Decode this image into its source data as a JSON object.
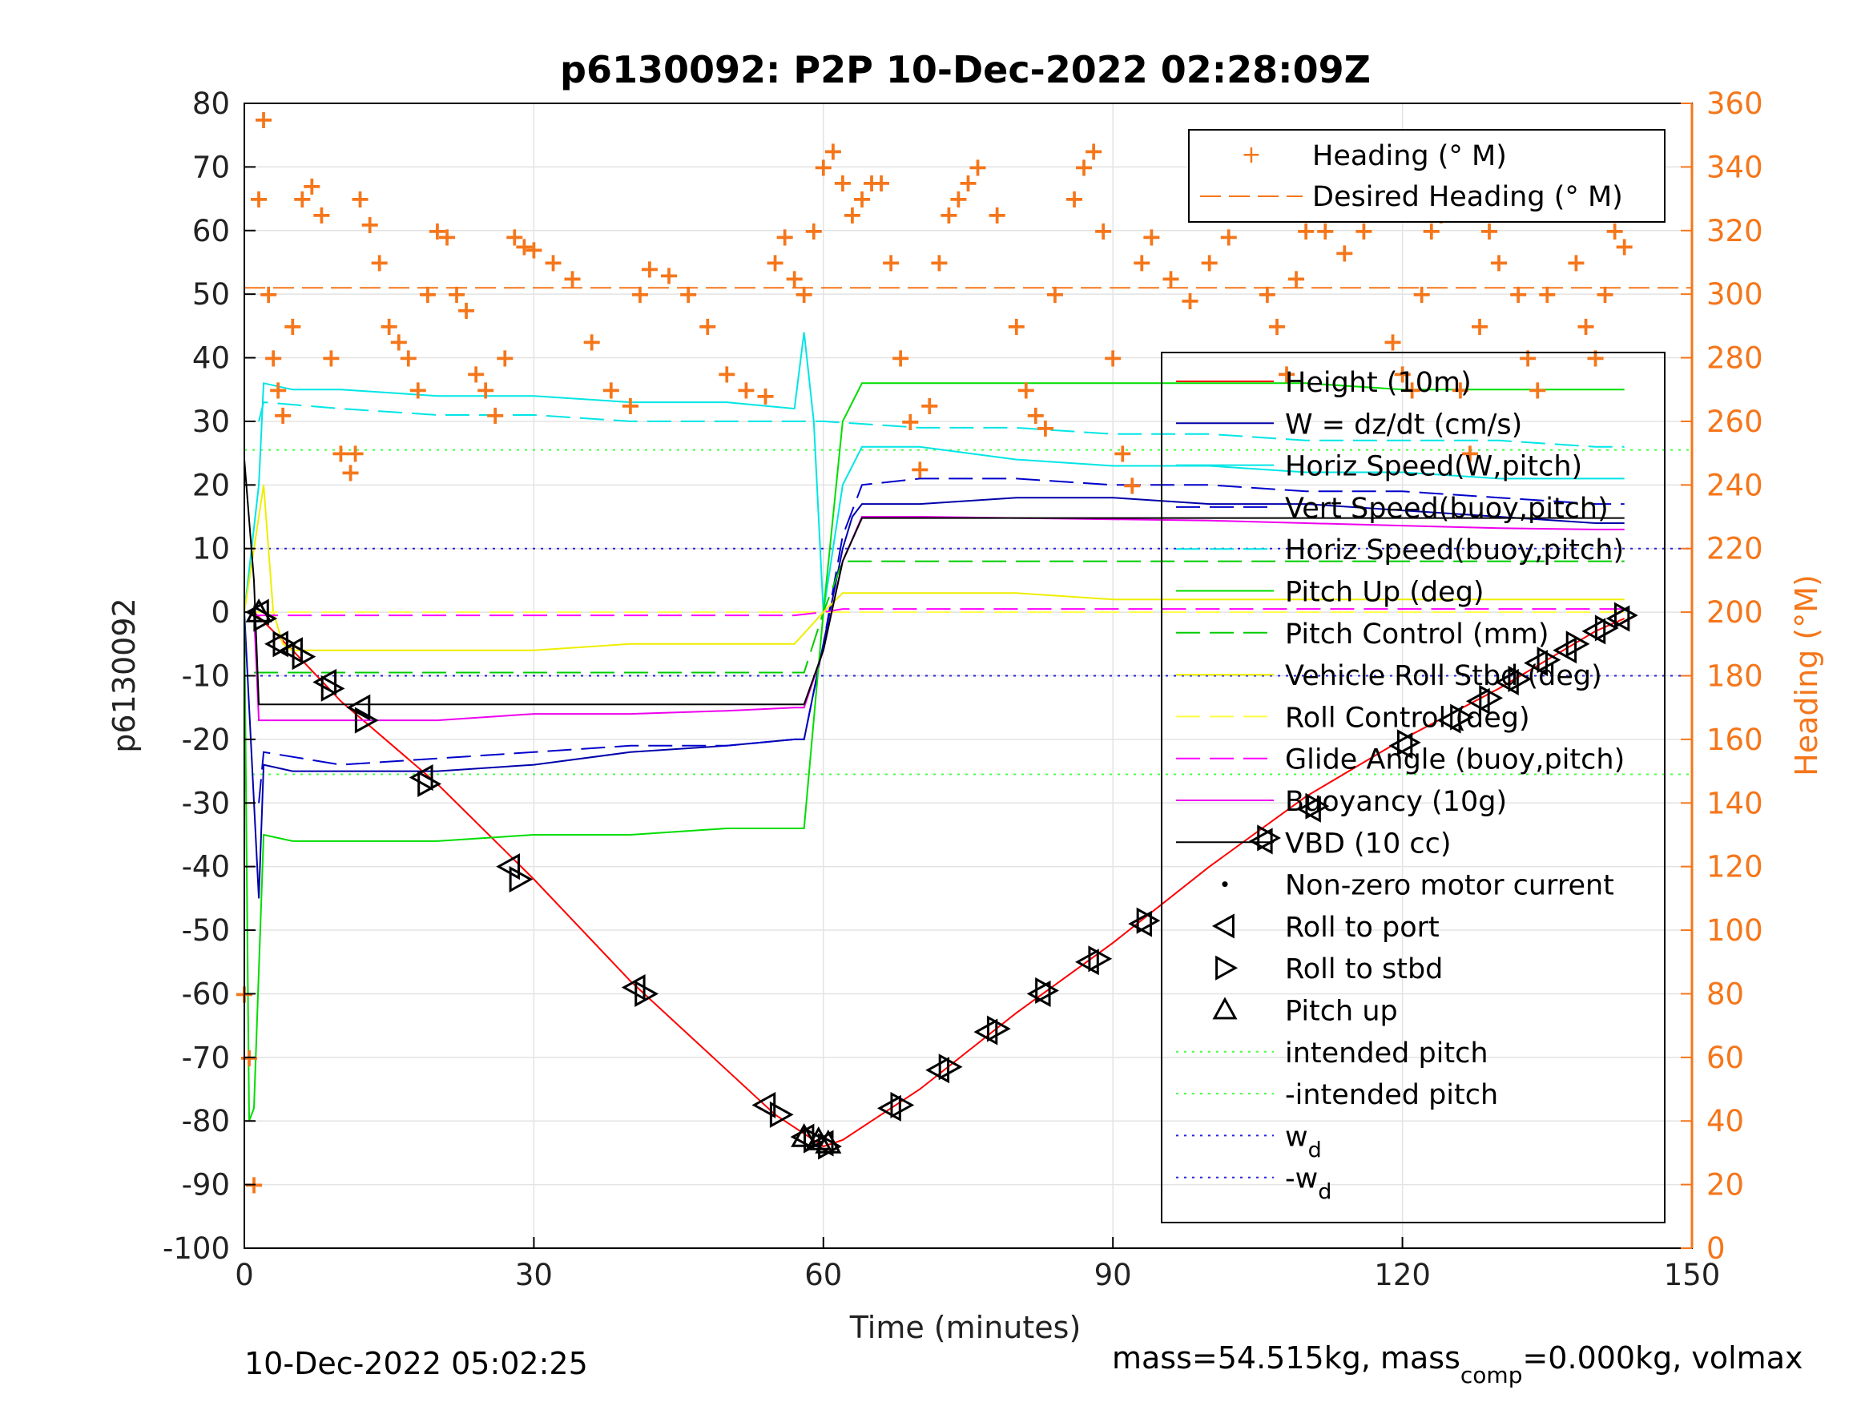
{
  "chart_data": {
    "type": "line",
    "title": "p6130092: P2P 10-Dec-2022 02:28:09Z",
    "xlabel": "Time (minutes)",
    "ylabel": "p6130092",
    "ylabel_right": "Heading (°M)",
    "xlim": [
      0,
      150
    ],
    "ylim": [
      -100,
      80
    ],
    "ylim_right": [
      0,
      360
    ],
    "xticks": [
      "0",
      "30",
      "60",
      "90",
      "120",
      "150"
    ],
    "yticks": [
      "80",
      "70",
      "60",
      "50",
      "40",
      "30",
      "20",
      "10",
      "0",
      "-10",
      "-20",
      "-30",
      "-40",
      "-50",
      "-60",
      "-70",
      "-80",
      "-90",
      "-100"
    ],
    "yticks_right": [
      "360",
      "340",
      "320",
      "300",
      "280",
      "260",
      "240",
      "220",
      "200",
      "180",
      "160",
      "140",
      "120",
      "100",
      "80",
      "60",
      "40",
      "20",
      "0"
    ],
    "grid": true,
    "footer_left": "10-Dec-2022 05:02:25",
    "footer_right": {
      "pre": "mass=54.515kg, mass",
      "sub": "comp",
      "post": "=0.000kg, volmax"
    },
    "heading_legend": {
      "position": "top-right",
      "items": [
        "Heading (° M)",
        "Desired Heading (° M)"
      ]
    },
    "legend": {
      "position": "right",
      "items": [
        {
          "label": "Height (10m)",
          "color": "#ff0000",
          "style": "solid"
        },
        {
          "label": "W = dz/dt (cm/s)",
          "color": "#0000aa",
          "style": "solid"
        },
        {
          "label": "Horiz Speed(W,pitch)",
          "color": "#00e5e5",
          "style": "solid"
        },
        {
          "label": "Vert Speed(buoy,pitch)",
          "color": "#0000cc",
          "style": "dashed"
        },
        {
          "label": "Horiz Speed(buoy,pitch)",
          "color": "#00e5e5",
          "style": "dashed"
        },
        {
          "label": "Pitch Up (deg)",
          "color": "#00dd00",
          "style": "solid"
        },
        {
          "label": "Pitch Control (mm)",
          "color": "#00cc00",
          "style": "dashed"
        },
        {
          "label": "Vehicle Roll Stbd (deg)",
          "color": "#eeee00",
          "style": "solid"
        },
        {
          "label": "Roll Control (deg)",
          "color": "#ffff44",
          "style": "dashed"
        },
        {
          "label": "Glide Angle (buoy,pitch)",
          "color": "#ff00ff",
          "style": "dashed"
        },
        {
          "label": "Buoyancy (10g)",
          "color": "#ee00ee",
          "style": "solid"
        },
        {
          "label": "VBD (10 cc)",
          "color": "#000000",
          "style": "solid"
        },
        {
          "label": "Non-zero motor current",
          "color": "#000000",
          "style": "dot"
        },
        {
          "label": "Roll to port",
          "color": "#000000",
          "style": "tri-left"
        },
        {
          "label": "Roll to stbd",
          "color": "#000000",
          "style": "tri-right"
        },
        {
          "label": "Pitch up",
          "color": "#000000",
          "style": "tri-up"
        },
        {
          "label": "intended pitch",
          "color": "#44ff44",
          "style": "dotted"
        },
        {
          "label": "-intended pitch",
          "color": "#44ff44",
          "style": "dotted"
        },
        {
          "label": "w",
          "sub": "d",
          "color": "#2222dd",
          "style": "dotted"
        },
        {
          "label": "-w",
          "sub": "d",
          "color": "#2222dd",
          "style": "dotted"
        }
      ]
    },
    "reference_lines": [
      {
        "name": "intended pitch",
        "y": 25.5,
        "color": "#44ff44"
      },
      {
        "name": "-intended pitch",
        "y": -25.5,
        "color": "#44ff44"
      },
      {
        "name": "w_d",
        "y": 10,
        "color": "#2222dd"
      },
      {
        "name": "-w_d",
        "y": -10,
        "color": "#2222dd"
      },
      {
        "name": "Desired Heading (° M)",
        "y_right": 302,
        "color": "#f5761a"
      }
    ],
    "series": [
      {
        "name": "Height (10m)",
        "color": "#ff0000",
        "x": [
          1,
          5,
          10,
          20,
          30,
          40,
          50,
          55,
          58,
          60,
          62,
          65,
          70,
          80,
          90,
          100,
          110,
          120,
          130,
          140,
          143
        ],
        "y": [
          0,
          -6,
          -14,
          -27,
          -42,
          -58,
          -72,
          -79,
          -82,
          -84,
          -83,
          -80,
          -75,
          -63,
          -52,
          -40,
          -29,
          -20,
          -12,
          -3,
          -1
        ]
      },
      {
        "name": "W = dz/dt (cm/s)",
        "color": "#0000aa",
        "x": [
          0,
          1.5,
          2,
          5,
          10,
          20,
          30,
          40,
          50,
          57,
          58,
          60,
          62,
          63,
          64,
          70,
          80,
          90,
          100,
          110,
          120,
          130,
          140,
          143
        ],
        "y": [
          0,
          -45,
          -24,
          -25,
          -25,
          -25,
          -24,
          -22,
          -21,
          -20,
          -20,
          -5,
          10,
          15,
          17,
          17,
          18,
          18,
          17,
          17,
          16,
          15,
          14,
          14
        ]
      },
      {
        "name": "Vert Speed(buoy,pitch)",
        "color": "#0000cc",
        "x": [
          1.5,
          2,
          10,
          20,
          30,
          40,
          50,
          57,
          58,
          60,
          62,
          64,
          70,
          80,
          90,
          100,
          110,
          120,
          130,
          140,
          143
        ],
        "y": [
          -30,
          -22,
          -24,
          -23,
          -22,
          -21,
          -21,
          -20,
          -20,
          -5,
          12,
          20,
          21,
          21,
          20,
          20,
          19,
          19,
          18,
          17,
          17
        ]
      },
      {
        "name": "Horiz Speed(W,pitch)",
        "color": "#00e5e5",
        "x": [
          0,
          1.5,
          2,
          5,
          10,
          20,
          30,
          40,
          50,
          57,
          58,
          59,
          60,
          62,
          64,
          70,
          80,
          90,
          100,
          110,
          120,
          130,
          140,
          143
        ],
        "y": [
          0,
          20,
          36,
          35,
          35,
          34,
          34,
          33,
          33,
          32,
          44,
          30,
          0,
          20,
          26,
          26,
          24,
          23,
          23,
          22,
          22,
          21,
          21,
          21
        ]
      },
      {
        "name": "Horiz Speed(buoy,pitch)",
        "color": "#00e5e5",
        "x": [
          1.5,
          2,
          10,
          20,
          30,
          40,
          50,
          57,
          60,
          70,
          80,
          90,
          100,
          110,
          120,
          130,
          140,
          143
        ],
        "y": [
          30,
          33,
          32,
          31,
          31,
          30,
          30,
          30,
          30,
          29,
          29,
          28,
          28,
          27,
          27,
          27,
          26,
          26
        ]
      },
      {
        "name": "Pitch Up (deg)",
        "color": "#00dd00",
        "x": [
          0,
          0.5,
          1,
          2,
          5,
          10,
          20,
          30,
          40,
          50,
          57,
          58,
          60,
          62,
          64,
          70,
          80,
          90,
          100,
          110,
          120,
          130,
          140,
          143
        ],
        "y": [
          0,
          -80,
          -78,
          -35,
          -36,
          -36,
          -36,
          -35,
          -35,
          -34,
          -34,
          -34,
          0,
          30,
          36,
          36,
          36,
          36,
          36,
          36,
          35,
          35,
          35,
          35
        ]
      },
      {
        "name": "Pitch Control (mm)",
        "color": "#00cc00",
        "x": [
          1,
          58,
          60,
          62,
          143
        ],
        "y": [
          -9.5,
          -9.5,
          0,
          8,
          8
        ]
      },
      {
        "name": "Vehicle Roll Stbd (deg)",
        "color": "#eeee00",
        "x": [
          0,
          2,
          3,
          4,
          5,
          10,
          20,
          30,
          40,
          50,
          57,
          60,
          62,
          70,
          80,
          90,
          100,
          110,
          120,
          130,
          140,
          143
        ],
        "y": [
          0,
          20,
          0,
          -5,
          -6,
          -6,
          -6,
          -6,
          -5,
          -5,
          -5,
          0,
          3,
          3,
          3,
          2,
          2,
          2,
          2,
          2,
          2,
          2
        ]
      },
      {
        "name": "Roll Control (deg)",
        "color": "#ffff44",
        "x": [
          1,
          58,
          60,
          143
        ],
        "y": [
          0,
          0,
          0,
          0
        ]
      },
      {
        "name": "Glide Angle (buoy,pitch)",
        "color": "#ff00ff",
        "x": [
          1,
          57,
          60,
          62,
          143
        ],
        "y": [
          -0.5,
          -0.5,
          0,
          0.5,
          0.5
        ]
      },
      {
        "name": "Buoyancy (10g)",
        "color": "#ee00ee",
        "x": [
          0,
          1,
          1.5,
          2,
          10,
          20,
          30,
          40,
          50,
          57,
          58,
          60,
          62,
          64,
          70,
          80,
          90,
          100,
          110,
          120,
          130,
          140,
          143
        ],
        "y": [
          0,
          0,
          -17,
          -17,
          -17,
          -17,
          -16,
          -16,
          -15.5,
          -15,
          -15,
          -6,
          8,
          15,
          15,
          14.8,
          14.6,
          14.4,
          14,
          13.6,
          13.2,
          13,
          13
        ]
      },
      {
        "name": "VBD (10 cc)",
        "color": "#000000",
        "x": [
          0,
          1,
          1.5,
          2,
          10,
          20,
          30,
          40,
          50,
          57,
          58,
          60,
          62,
          64,
          70,
          80,
          90,
          100,
          110,
          120,
          130,
          140,
          143
        ],
        "y": [
          24,
          5,
          -14.5,
          -14.5,
          -14.5,
          -14.5,
          -14.5,
          -14.5,
          -14.5,
          -14.5,
          -14.5,
          -6,
          8,
          14.8,
          14.8,
          14.8,
          14.8,
          14.8,
          14.8,
          14.8,
          14.8,
          14.8,
          14.8
        ]
      }
    ],
    "heading": {
      "name": "Heading (° M)",
      "axis": "right",
      "color": "#f5761a",
      "marker": "+",
      "x": [
        0,
        0.5,
        1,
        1.5,
        2,
        2.5,
        3,
        3.5,
        4,
        5,
        6,
        7,
        8,
        9,
        10,
        11,
        11.5,
        12,
        13,
        14,
        15,
        16,
        17,
        18,
        19,
        20,
        21,
        22,
        23,
        24,
        25,
        26,
        27,
        28,
        29,
        30,
        32,
        34,
        36,
        38,
        40,
        41,
        42,
        44,
        46,
        48,
        50,
        52,
        54,
        55,
        56,
        57,
        58,
        59,
        60,
        61,
        62,
        63,
        64,
        65,
        66,
        67,
        68,
        69,
        70,
        71,
        72,
        73,
        74,
        75,
        76,
        78,
        80,
        81,
        82,
        83,
        84,
        86,
        87,
        88,
        89,
        90,
        91,
        92,
        93,
        94,
        96,
        98,
        100,
        102,
        104,
        105,
        106,
        107,
        108,
        109,
        110,
        111,
        112,
        114,
        116,
        118,
        119,
        120,
        121,
        122,
        123,
        124,
        125,
        126,
        127,
        128,
        129,
        130,
        131,
        132,
        133,
        134,
        135,
        136,
        137,
        138,
        139,
        140,
        141,
        142,
        143
      ],
      "y": [
        80,
        60,
        20,
        330,
        355,
        300,
        280,
        270,
        262,
        290,
        330,
        334,
        325,
        280,
        250,
        244,
        250,
        330,
        322,
        310,
        290,
        285,
        280,
        270,
        300,
        320,
        318,
        300,
        295,
        275,
        270,
        262,
        280,
        318,
        315,
        314,
        310,
        305,
        285,
        270,
        265,
        300,
        308,
        306,
        300,
        290,
        275,
        270,
        268,
        310,
        318,
        305,
        300,
        320,
        340,
        345,
        335,
        325,
        330,
        335,
        335,
        310,
        280,
        260,
        245,
        265,
        310,
        325,
        330,
        335,
        340,
        325,
        290,
        270,
        262,
        258,
        300,
        330,
        340,
        345,
        320,
        280,
        250,
        240,
        310,
        318,
        305,
        298,
        310,
        318,
        340,
        335,
        300,
        290,
        275,
        305,
        320,
        330,
        320,
        313,
        320,
        330,
        285,
        275,
        270,
        300,
        320,
        325,
        330,
        270,
        250,
        290,
        320,
        310,
        330,
        300,
        280,
        270,
        300,
        330,
        340,
        310,
        290,
        280,
        300,
        320,
        315
      ]
    },
    "markers": {
      "roll_to_port": {
        "x": [
          1.5,
          3.5,
          5,
          8.5,
          12,
          18.5,
          27.5,
          40.5,
          54,
          58,
          60,
          67,
          72,
          77,
          82.5,
          87.5,
          93,
          105.5,
          110.5,
          120,
          125,
          128,
          131,
          134,
          137,
          140,
          142.5
        ],
        "y": [
          0,
          -5,
          -6,
          -11,
          -15,
          -26,
          -40,
          -59,
          -77.5,
          -82.5,
          -83.5,
          -78,
          -72,
          -66,
          -60,
          -55,
          -49,
          -36,
          -31,
          -21,
          -17,
          -14,
          -11,
          -8,
          -6,
          -3,
          -1
        ]
      },
      "roll_to_stbd": {
        "x": [
          2,
          4,
          6,
          9,
          12.5,
          19,
          28.5,
          41.5,
          55.5,
          59,
          60.5,
          68,
          73,
          78,
          83,
          88.5,
          93.5,
          106,
          111,
          120.5,
          126,
          129,
          132,
          135,
          138,
          141,
          143
        ],
        "y": [
          -1,
          -5,
          -7,
          -12,
          -17,
          -27,
          -42,
          -60,
          -79,
          -83,
          -84,
          -77.5,
          -71.5,
          -65.5,
          -59.5,
          -54.5,
          -48.5,
          -35.5,
          -30.5,
          -20.5,
          -16.5,
          -13.5,
          -10.5,
          -7.5,
          -5,
          -2.5,
          -0.5
        ]
      },
      "pitch_up": {
        "x": [
          1.5,
          58,
          59.5,
          60.5
        ],
        "y": [
          0,
          -82.5,
          -83,
          -83.5
        ]
      }
    }
  }
}
